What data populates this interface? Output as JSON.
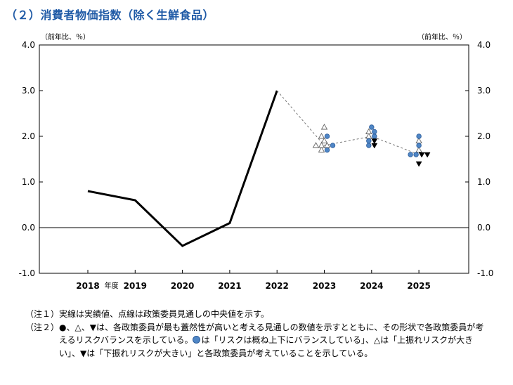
{
  "title": "（２）消費者物価指数（除く生鮮食品）",
  "unit_left": "（前年比、％）",
  "unit_right": "（前年比、％）",
  "chart_data": {
    "type": "line",
    "title": "（２）消費者物価指数（除く生鮮食品）",
    "ylabel": "前年比、％",
    "xlabel": "年度",
    "ylim": [
      -1.0,
      4.0
    ],
    "yticks": [
      4.0,
      3.0,
      2.0,
      1.0,
      0.0,
      -1.0
    ],
    "ytick_labels": [
      "4.0",
      "3.0",
      "2.0",
      "1.0",
      "0.0",
      "-1.0"
    ],
    "categories": [
      "2018",
      "2019",
      "2020",
      "2021",
      "2022",
      "2023",
      "2024",
      "2025"
    ],
    "fiscal_year_label": "年度",
    "grid": false,
    "zero_line": true,
    "series": [
      {
        "name": "実績値",
        "style": "solid",
        "x": [
          "2018",
          "2019",
          "2020",
          "2021",
          "2022"
        ],
        "values": [
          0.8,
          0.6,
          -0.4,
          0.1,
          3.0
        ]
      },
      {
        "name": "政策委員見通しの中央値",
        "style": "dotted",
        "x": [
          "2022",
          "2023",
          "2024",
          "2025"
        ],
        "values": [
          3.0,
          1.8,
          2.0,
          1.6
        ]
      }
    ],
    "board_members": [
      {
        "year": "2023",
        "dots": [
          1.7,
          1.8,
          2.0
        ],
        "up_triangles": [
          1.7,
          1.8,
          1.8,
          1.8,
          1.9,
          2.0,
          2.2
        ],
        "down_triangles": []
      },
      {
        "year": "2024",
        "dots": [
          1.8,
          1.9,
          2.0,
          2.1,
          2.2
        ],
        "up_triangles": [
          2.0,
          2.1
        ],
        "down_triangles": [
          1.8,
          1.9
        ]
      },
      {
        "year": "2025",
        "dots": [
          1.6,
          1.6,
          1.8,
          2.0
        ],
        "up_triangles": [
          1.7,
          1.9
        ],
        "down_triangles": [
          1.4,
          1.6,
          1.6
        ]
      }
    ]
  },
  "notes": [
    {
      "label": "（注１）",
      "parts": [
        {
          "text": "実線は実績値、点線は政策委員見通しの中央値を示す。"
        }
      ]
    },
    {
      "label": "（注２）",
      "parts": [
        {
          "text": "●、△、▼は、各政策委員が最も蓋然性が高いと考える見通しの数値を示すとともに、その形状で各政策委員が考えるリスクバランスを示している。"
        },
        {
          "icon": "blue-dot"
        },
        {
          "text": "は「リスクは概ね上下にバランスしている」、△は「上振れリスクが大きい」、▼は「下振れリスクが大きい」と各政策委員が考えていることを示している。"
        }
      ]
    }
  ]
}
